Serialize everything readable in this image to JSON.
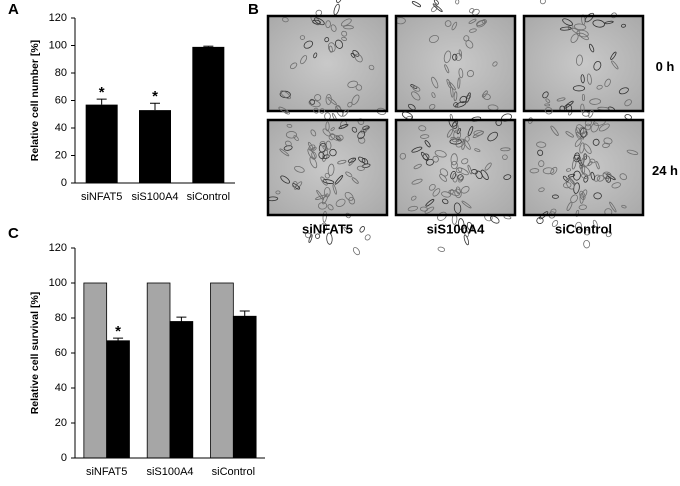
{
  "chart_data": [
    {
      "type": "bar",
      "label": "A",
      "ylabel": "Relative cell number [%]",
      "categories": [
        "siNFAT5",
        "siS100A4",
        "siControl"
      ],
      "values": [
        57,
        53,
        99
      ],
      "errors": [
        4,
        5,
        0.5
      ],
      "annotations": [
        "*",
        "*",
        null
      ],
      "color": "#000000",
      "ylim": [
        0,
        120
      ],
      "yticks": [
        0,
        20,
        40,
        60,
        80,
        100,
        120
      ]
    },
    {
      "type": "grouped-bar",
      "label": "C",
      "ylabel": "Relative cell survival [%]",
      "categories": [
        "siNFAT5",
        "siS100A4",
        "siControl"
      ],
      "series": [
        {
          "color": "#a6a6a6",
          "values": [
            100,
            100,
            100
          ]
        },
        {
          "color": "#000000",
          "values": [
            67,
            78,
            81
          ],
          "errors": [
            1.5,
            2.5,
            3
          ],
          "annotations": [
            "*",
            null,
            null
          ]
        }
      ],
      "ylim": [
        0,
        120
      ],
      "yticks": [
        0,
        20,
        40,
        60,
        80,
        100,
        120
      ]
    }
  ],
  "image_panel": {
    "label": "B",
    "rows": [
      "0 h",
      "24 h"
    ],
    "columns": [
      "siNFAT5",
      "siS100A4",
      "siControl"
    ]
  }
}
